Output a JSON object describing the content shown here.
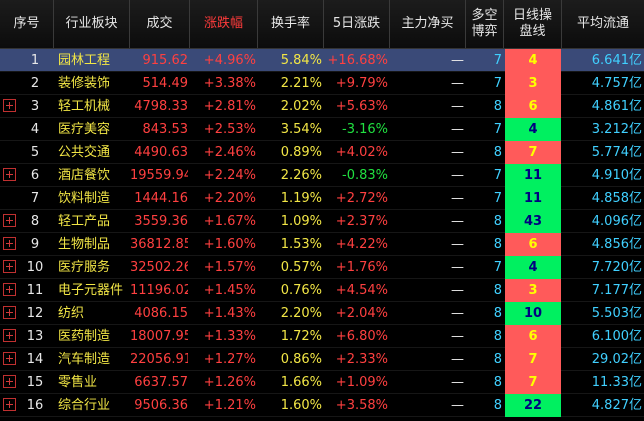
{
  "columns": [
    "序号",
    "行业板块",
    "成交",
    "涨跌幅",
    "换手率",
    "5日涨跌",
    "主力净买",
    [
      "多空",
      "博弈"
    ],
    [
      "日线操",
      "盘线"
    ],
    "平均流通"
  ],
  "rows": [
    {
      "no": "1",
      "name": "园林工程",
      "vol": "915.62",
      "chg": "+4.96%",
      "turn": "5.84%",
      "chg5": "+16.68%",
      "chg5_dir": "up",
      "flow": "—",
      "ls": "7",
      "signal": "4",
      "signal_color": "red",
      "avg": "6.641亿",
      "expand": false,
      "selected": true
    },
    {
      "no": "2",
      "name": "装修装饰",
      "vol": "514.49",
      "chg": "+3.38%",
      "turn": "2.21%",
      "chg5": "+9.79%",
      "chg5_dir": "up",
      "flow": "—",
      "ls": "7",
      "signal": "3",
      "signal_color": "red",
      "avg": "4.757亿",
      "expand": false,
      "selected": false
    },
    {
      "no": "3",
      "name": "轻工机械",
      "vol": "4798.33",
      "chg": "+2.81%",
      "turn": "2.02%",
      "chg5": "+5.63%",
      "chg5_dir": "up",
      "flow": "—",
      "ls": "8",
      "signal": "6",
      "signal_color": "red",
      "avg": "4.861亿",
      "expand": true,
      "selected": false
    },
    {
      "no": "4",
      "name": "医疗美容",
      "vol": "843.53",
      "chg": "+2.53%",
      "turn": "3.54%",
      "chg5": "-3.16%",
      "chg5_dir": "down",
      "flow": "—",
      "ls": "7",
      "signal": "4",
      "signal_color": "green",
      "avg": "3.212亿",
      "expand": false,
      "selected": false
    },
    {
      "no": "5",
      "name": "公共交通",
      "vol": "4490.63",
      "chg": "+2.46%",
      "turn": "0.89%",
      "chg5": "+4.02%",
      "chg5_dir": "up",
      "flow": "—",
      "ls": "8",
      "signal": "7",
      "signal_color": "red",
      "avg": "5.774亿",
      "expand": false,
      "selected": false
    },
    {
      "no": "6",
      "name": "酒店餐饮",
      "vol": "19559.94",
      "chg": "+2.24%",
      "turn": "2.26%",
      "chg5": "-0.83%",
      "chg5_dir": "down",
      "flow": "—",
      "ls": "7",
      "signal": "11",
      "signal_color": "green",
      "avg": "4.910亿",
      "expand": true,
      "selected": false
    },
    {
      "no": "7",
      "name": "饮料制造",
      "vol": "1444.16",
      "chg": "+2.20%",
      "turn": "1.19%",
      "chg5": "+2.72%",
      "chg5_dir": "up",
      "flow": "—",
      "ls": "7",
      "signal": "11",
      "signal_color": "green",
      "avg": "4.858亿",
      "expand": false,
      "selected": false
    },
    {
      "no": "8",
      "name": "轻工产品",
      "vol": "3559.36",
      "chg": "+1.67%",
      "turn": "1.09%",
      "chg5": "+2.37%",
      "chg5_dir": "up",
      "flow": "—",
      "ls": "8",
      "signal": "43",
      "signal_color": "green",
      "avg": "4.096亿",
      "expand": true,
      "selected": false
    },
    {
      "no": "9",
      "name": "生物制品",
      "vol": "36812.85",
      "chg": "+1.60%",
      "turn": "1.53%",
      "chg5": "+4.22%",
      "chg5_dir": "up",
      "flow": "—",
      "ls": "8",
      "signal": "6",
      "signal_color": "red",
      "avg": "4.856亿",
      "expand": true,
      "selected": false
    },
    {
      "no": "10",
      "name": "医疗服务",
      "vol": "32502.26",
      "chg": "+1.57%",
      "turn": "0.57%",
      "chg5": "+1.76%",
      "chg5_dir": "up",
      "flow": "—",
      "ls": "7",
      "signal": "4",
      "signal_color": "green",
      "avg": "7.720亿",
      "expand": true,
      "selected": false
    },
    {
      "no": "11",
      "name": "电子元器件",
      "vol": "11196.02",
      "chg": "+1.45%",
      "turn": "0.76%",
      "chg5": "+4.54%",
      "chg5_dir": "up",
      "flow": "—",
      "ls": "8",
      "signal": "3",
      "signal_color": "red",
      "avg": "7.177亿",
      "expand": true,
      "selected": false
    },
    {
      "no": "12",
      "name": "纺织",
      "vol": "4086.15",
      "chg": "+1.43%",
      "turn": "2.20%",
      "chg5": "+2.04%",
      "chg5_dir": "up",
      "flow": "—",
      "ls": "8",
      "signal": "10",
      "signal_color": "green",
      "avg": "5.503亿",
      "expand": true,
      "selected": false
    },
    {
      "no": "13",
      "name": "医药制造",
      "vol": "18007.95",
      "chg": "+1.33%",
      "turn": "1.72%",
      "chg5": "+6.80%",
      "chg5_dir": "up",
      "flow": "—",
      "ls": "8",
      "signal": "6",
      "signal_color": "red",
      "avg": "6.100亿",
      "expand": true,
      "selected": false
    },
    {
      "no": "14",
      "name": "汽车制造",
      "vol": "22056.91",
      "chg": "+1.27%",
      "turn": "0.86%",
      "chg5": "+2.33%",
      "chg5_dir": "up",
      "flow": "—",
      "ls": "8",
      "signal": "7",
      "signal_color": "red",
      "avg": "29.02亿",
      "expand": true,
      "selected": false
    },
    {
      "no": "15",
      "name": "零售业",
      "vol": "6637.57",
      "chg": "+1.26%",
      "turn": "1.66%",
      "chg5": "+1.09%",
      "chg5_dir": "up",
      "flow": "—",
      "ls": "8",
      "signal": "7",
      "signal_color": "red",
      "avg": "11.33亿",
      "expand": true,
      "selected": false
    },
    {
      "no": "16",
      "name": "综合行业",
      "vol": "9506.36",
      "chg": "+1.21%",
      "turn": "1.60%",
      "chg5": "+3.58%",
      "chg5_dir": "up",
      "flow": "—",
      "ls": "8",
      "signal": "22",
      "signal_color": "green",
      "avg": "4.827亿",
      "expand": true,
      "selected": false
    }
  ]
}
